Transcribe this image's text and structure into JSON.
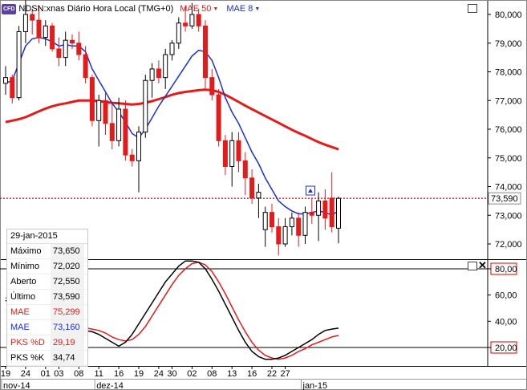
{
  "header": {
    "badge": "CFD",
    "instrument": "NDSN:xnas Diário Hora Local (TMG+0)",
    "mae50_label": "MAE 50",
    "mae8_label": "MAE 8"
  },
  "colors": {
    "up": "#ffffff",
    "down": "#e31b1b",
    "mae50": "#e31b1b",
    "mae8": "#1a2fd6",
    "pks_k": "#000000",
    "pks_d": "#e31b1b",
    "last_price_line": "#d40000"
  },
  "info_panel": {
    "date": "29-jan-2015",
    "rows": [
      {
        "label": "Máximo",
        "value": "73,650",
        "color": "#000000"
      },
      {
        "label": "Mínimo",
        "value": "72,020",
        "color": "#000000"
      },
      {
        "label": "Aberto",
        "value": "72,550",
        "color": "#000000"
      },
      {
        "label": "Último",
        "value": "73,590",
        "color": "#000000"
      },
      {
        "label": "MAE",
        "value": "75,299",
        "color": "#e31b1b"
      },
      {
        "label": "MAE",
        "value": "73,160",
        "color": "#1a2fd6"
      },
      {
        "label": "PKS %D",
        "value": "29,19",
        "color": "#e31b1b"
      },
      {
        "label": "PKS %K",
        "value": "34,74",
        "color": "#000000"
      }
    ]
  },
  "chart_data": [
    {
      "type": "candlestick",
      "ylim": [
        71.2,
        80.5
      ],
      "y_ticks": [
        "80,000",
        "79,000",
        "78,000",
        "77,000",
        "76,000",
        "75,000",
        "74,000",
        "73,000",
        "72,000"
      ],
      "y_tick_values": [
        80,
        79,
        78,
        77,
        76,
        75,
        74,
        73,
        72
      ],
      "last_price": 73.59,
      "last_price_label": "73,590",
      "ohlc": [
        [
          77.6,
          78.2,
          77.2,
          77.8
        ],
        [
          77.8,
          77.9,
          76.9,
          77.1
        ],
        [
          77.1,
          79.6,
          77.0,
          79.4
        ],
        [
          79.4,
          80.5,
          79.0,
          80.0
        ],
        [
          80.0,
          80.2,
          79.3,
          79.8
        ],
        [
          79.8,
          80.3,
          79.0,
          79.2
        ],
        [
          79.2,
          79.8,
          78.9,
          79.6
        ],
        [
          79.6,
          79.7,
          78.7,
          78.8
        ],
        [
          78.8,
          79.2,
          78.2,
          78.5
        ],
        [
          78.5,
          79.4,
          78.2,
          79.1
        ],
        [
          79.1,
          79.3,
          78.8,
          79.0
        ],
        [
          79.0,
          79.4,
          78.4,
          78.6
        ],
        [
          78.6,
          78.9,
          77.6,
          77.8
        ],
        [
          77.8,
          77.9,
          76.1,
          76.3
        ],
        [
          76.3,
          77.2,
          75.4,
          77.0
        ],
        [
          77.0,
          77.3,
          75.8,
          76.2
        ],
        [
          76.2,
          76.9,
          75.3,
          75.6
        ],
        [
          75.6,
          77.1,
          75.4,
          76.7
        ],
        [
          76.7,
          77.0,
          74.9,
          75.1
        ],
        [
          75.1,
          75.3,
          74.7,
          74.9
        ],
        [
          74.9,
          76.1,
          73.8,
          75.9
        ],
        [
          75.9,
          77.9,
          75.7,
          77.7
        ],
        [
          77.7,
          78.3,
          77.1,
          78.1
        ],
        [
          78.1,
          78.4,
          77.6,
          77.8
        ],
        [
          77.8,
          78.8,
          77.4,
          78.6
        ],
        [
          78.6,
          79.1,
          78.4,
          79.0
        ],
        [
          79.0,
          79.9,
          78.8,
          79.7
        ],
        [
          79.7,
          80.3,
          79.4,
          79.6
        ],
        [
          79.6,
          80.4,
          79.5,
          80.0
        ],
        [
          80.0,
          80.2,
          79.4,
          79.6
        ],
        [
          79.6,
          79.8,
          77.4,
          77.8
        ],
        [
          77.8,
          78.1,
          77.0,
          77.2
        ],
        [
          77.2,
          77.4,
          75.4,
          75.6
        ],
        [
          75.6,
          75.8,
          74.4,
          74.7
        ],
        [
          74.7,
          75.9,
          74.0,
          75.6
        ],
        [
          75.6,
          75.9,
          74.5,
          74.9
        ],
        [
          74.9,
          75.2,
          73.7,
          74.3
        ],
        [
          74.3,
          74.6,
          73.4,
          73.6
        ],
        [
          73.6,
          74.1,
          72.9,
          73.8
        ],
        [
          72.5,
          73.3,
          71.9,
          73.1
        ],
        [
          73.1,
          73.4,
          72.4,
          72.6
        ],
        [
          72.6,
          72.9,
          71.6,
          72.0
        ],
        [
          72.0,
          72.9,
          71.9,
          72.6
        ],
        [
          72.6,
          73.1,
          72.3,
          72.9
        ],
        [
          72.9,
          73.1,
          71.9,
          72.3
        ],
        [
          72.3,
          73.3,
          72.0,
          73.1
        ],
        [
          73.1,
          73.6,
          72.7,
          73.0
        ],
        [
          73.0,
          73.8,
          72.1,
          73.5
        ],
        [
          73.5,
          73.9,
          72.5,
          72.9
        ],
        [
          73.6,
          74.5,
          72.4,
          72.6
        ],
        [
          72.55,
          73.65,
          72.02,
          73.59
        ]
      ],
      "series": [
        {
          "name": "MAE 50",
          "values": [
            76.25,
            76.3,
            76.35,
            76.42,
            76.52,
            76.62,
            76.72,
            76.8,
            76.86,
            76.9,
            76.95,
            77.0,
            77.0,
            77.0,
            76.98,
            76.95,
            76.92,
            76.9,
            76.88,
            76.86,
            76.88,
            76.92,
            76.98,
            77.05,
            77.12,
            77.2,
            77.26,
            77.3,
            77.33,
            77.36,
            77.38,
            77.36,
            77.3,
            77.2,
            77.08,
            76.95,
            76.82,
            76.7,
            76.58,
            76.46,
            76.34,
            76.22,
            76.1,
            75.98,
            75.87,
            75.77,
            75.66,
            75.55,
            75.46,
            75.38,
            75.299
          ]
        },
        {
          "name": "MAE 8",
          "values": [
            77.6,
            77.7,
            78.3,
            78.9,
            79.15,
            79.2,
            79.15,
            79.05,
            78.9,
            78.95,
            78.9,
            78.9,
            78.7,
            78.1,
            77.7,
            77.3,
            76.9,
            76.6,
            76.25,
            75.85,
            75.7,
            76.0,
            76.4,
            76.8,
            77.15,
            77.5,
            77.85,
            78.2,
            78.55,
            78.75,
            78.7,
            78.4,
            77.8,
            77.1,
            76.6,
            76.2,
            75.7,
            75.2,
            74.8,
            74.3,
            73.9,
            73.5,
            73.3,
            73.15,
            73.05,
            73.05,
            73.1,
            73.15,
            73.1,
            73.0,
            73.16
          ]
        }
      ]
    },
    {
      "type": "line",
      "title": "PKS",
      "ylim": [
        10,
        90
      ],
      "y_ticks": [
        "80,00",
        "60,00",
        "40,00",
        "20,00"
      ],
      "y_tick_values": [
        80,
        60,
        40,
        20
      ],
      "levels": [
        80,
        20
      ],
      "series": [
        {
          "name": "PKS %K",
          "values": [
            56,
            52,
            48,
            46,
            44,
            42,
            40,
            38,
            37,
            36,
            35,
            34,
            33,
            32,
            30,
            27,
            24,
            21,
            24,
            30,
            38,
            46,
            54,
            62,
            70,
            76,
            82,
            86,
            86,
            85,
            80,
            72,
            63,
            53,
            43,
            33,
            24,
            17,
            13,
            11,
            11,
            12,
            14,
            17,
            20,
            23,
            26,
            30,
            33,
            34,
            34.74
          ]
        },
        {
          "name": "PKS %D",
          "values": [
            58,
            55,
            51,
            48,
            46,
            44,
            42,
            40,
            39,
            38,
            37,
            36,
            35,
            34,
            33,
            31,
            28,
            26,
            25,
            26,
            30,
            36,
            44,
            52,
            60,
            68,
            75,
            80,
            84,
            85,
            83,
            78,
            70,
            61,
            51,
            41,
            32,
            24,
            18,
            14,
            12,
            11,
            12,
            14,
            17,
            19,
            22,
            24,
            26,
            28,
            29.19
          ]
        }
      ]
    }
  ],
  "x_axis": {
    "day_ticks": [
      {
        "label": "19",
        "i": 0
      },
      {
        "label": "24",
        "i": 3
      },
      {
        "label": "01",
        "i": 6
      },
      {
        "label": "03",
        "i": 8
      },
      {
        "label": "08",
        "i": 11
      },
      {
        "label": "11",
        "i": 14
      },
      {
        "label": "16",
        "i": 17
      },
      {
        "label": "19",
        "i": 20
      },
      {
        "label": "24",
        "i": 23
      },
      {
        "label": "30",
        "i": 25
      },
      {
        "label": "02",
        "i": 28
      },
      {
        "label": "08",
        "i": 31
      },
      {
        "label": "13",
        "i": 34
      },
      {
        "label": "16",
        "i": 37
      },
      {
        "label": "22",
        "i": 40
      },
      {
        "label": "27",
        "i": 42
      }
    ],
    "months": [
      {
        "label": "nov-14",
        "i": 0
      },
      {
        "label": "dez-14",
        "i": 14
      },
      {
        "label": "jan-15",
        "i": 45
      }
    ]
  }
}
